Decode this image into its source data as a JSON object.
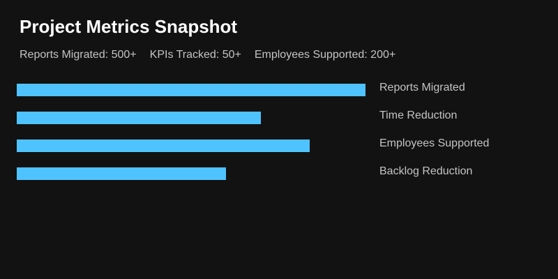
{
  "title": "Project Metrics Snapshot",
  "stats": [
    "Reports Migrated: 500+",
    "KPIs Tracked: 50+",
    "Employees Supported: 200+"
  ],
  "colors": {
    "background": "#121212",
    "bar": "#4fc3ff",
    "title": "#ffffff",
    "text": "#c4c4c4"
  },
  "chart_data": {
    "type": "bar",
    "orientation": "horizontal",
    "title": "Project Metrics Snapshot",
    "categories": [
      "Reports Migrated",
      "Time Reduction",
      "Employees Supported",
      "Backlog Reduction"
    ],
    "values": [
      500,
      350,
      420,
      300
    ],
    "xlabel": "",
    "ylabel": "",
    "grid": false,
    "legend": null
  }
}
